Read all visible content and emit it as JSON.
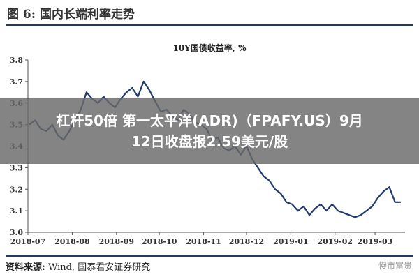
{
  "figure": {
    "label": "图 6:  国内长端利率走势"
  },
  "source": {
    "label": "资料来源:",
    "text": " Wind, 国泰君安证券研究"
  },
  "watermark": "慢市富贵",
  "overlay": {
    "line1": "杠杆50倍 第一太平洋(ADR)（FPAFY.US）9月",
    "line2": "12日收盘报2.59美元/股"
  },
  "chart_data": {
    "type": "line",
    "title": "10Y国债收益率, %",
    "xlabel": "",
    "ylabel": "",
    "ylim": [
      3.0,
      3.8
    ],
    "yticks": [
      "3.0",
      "3.1",
      "3.2",
      "3.3",
      "3.4",
      "3.5",
      "3.6",
      "3.7",
      "3.8"
    ],
    "xticks": [
      "2018-07",
      "2018-08",
      "2018-09",
      "2018-10",
      "2018-11",
      "2018-12",
      "2019-01",
      "2019-02",
      "2019-03"
    ],
    "grid": false,
    "line_color": "#1f3a6b",
    "series": [
      {
        "name": "",
        "x": [
          "2018-07-02",
          "2018-07-06",
          "2018-07-10",
          "2018-07-14",
          "2018-07-18",
          "2018-07-22",
          "2018-07-26",
          "2018-07-30",
          "2018-08-03",
          "2018-08-07",
          "2018-08-11",
          "2018-08-15",
          "2018-08-19",
          "2018-08-23",
          "2018-08-27",
          "2018-08-31",
          "2018-09-04",
          "2018-09-08",
          "2018-09-12",
          "2018-09-16",
          "2018-09-20",
          "2018-09-24",
          "2018-09-28",
          "2018-10-02",
          "2018-10-06",
          "2018-10-10",
          "2018-10-14",
          "2018-10-18",
          "2018-10-22",
          "2018-10-26",
          "2018-10-30",
          "2018-11-03",
          "2018-11-07",
          "2018-11-11",
          "2018-11-15",
          "2018-11-19",
          "2018-11-23",
          "2018-11-27",
          "2018-12-01",
          "2018-12-05",
          "2018-12-09",
          "2018-12-13",
          "2018-12-17",
          "2018-12-21",
          "2018-12-25",
          "2018-12-29",
          "2019-01-02",
          "2019-01-06",
          "2019-01-10",
          "2019-01-14",
          "2019-01-18",
          "2019-01-22",
          "2019-01-26",
          "2019-01-30",
          "2019-02-03",
          "2019-02-07",
          "2019-02-11",
          "2019-02-15",
          "2019-02-19",
          "2019-02-23",
          "2019-02-27",
          "2019-03-03",
          "2019-03-07",
          "2019-03-11",
          "2019-03-15",
          "2019-03-19"
        ],
        "values": [
          3.5,
          3.52,
          3.48,
          3.47,
          3.5,
          3.45,
          3.43,
          3.47,
          3.52,
          3.57,
          3.65,
          3.62,
          3.6,
          3.63,
          3.6,
          3.58,
          3.62,
          3.65,
          3.67,
          3.63,
          3.7,
          3.66,
          3.61,
          3.56,
          3.57,
          3.54,
          3.52,
          3.57,
          3.55,
          3.51,
          3.5,
          3.48,
          3.43,
          3.44,
          3.39,
          3.38,
          3.4,
          3.36,
          3.4,
          3.34,
          3.3,
          3.26,
          3.24,
          3.2,
          3.18,
          3.14,
          3.13,
          3.1,
          3.12,
          3.08,
          3.11,
          3.13,
          3.1,
          3.13,
          3.1,
          3.09,
          3.08,
          3.07,
          3.08,
          3.1,
          3.12,
          3.16,
          3.19,
          3.21,
          3.14,
          3.14
        ]
      }
    ]
  }
}
